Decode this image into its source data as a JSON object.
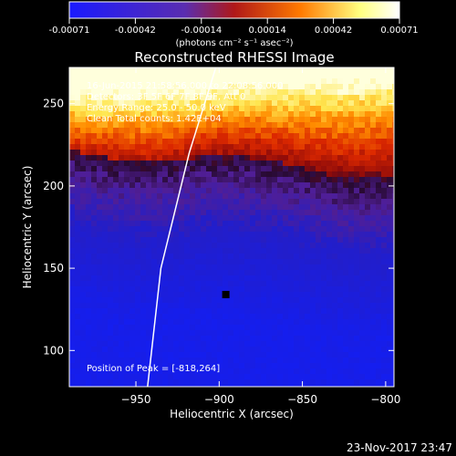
{
  "window": {
    "footer_date": "23-Nov-2017 23:47"
  },
  "colorbar": {
    "ticks": [
      "-0.00071",
      "-0.00042",
      "-0.00014",
      "0.00014",
      "0.00042",
      "0.00071"
    ],
    "units_label": "(photons cm⁻² s⁻¹ asec⁻²)",
    "colormap": [
      "#1a1aff",
      "#5a2db0",
      "#b01818",
      "#ff7a00",
      "#ffff80",
      "#ffffff"
    ]
  },
  "chart_data": {
    "type": "heatmap",
    "title": "Reconstructed RHESSI Image",
    "xlabel": "Heliocentric X (arcsec)",
    "ylabel": "Heliocentric Y (arcsec)",
    "xlim": [
      -990,
      -795
    ],
    "ylim": [
      78,
      272
    ],
    "x_ticks": [
      -950,
      -900,
      -850,
      -800
    ],
    "x_tick_labels": [
      "−950",
      "−900",
      "−850",
      "−800"
    ],
    "y_ticks": [
      100,
      150,
      200,
      250
    ],
    "y_tick_labels": [
      "100",
      "150",
      "200",
      "250"
    ],
    "info_lines": [
      "16-Jun-2015 21:58:56.000 to 22:08:56.000",
      "Detectors: 3F 5F 6F 7F 8F 9F, Att 0",
      "Energy Range: 25.0 - 50.0 keV",
      "Clean    Total counts: 1.42E+04"
    ],
    "peak_label": "Position of Peak = [-818,264]",
    "peak": [
      -818,
      264
    ],
    "limb_points": [
      [
        -943,
        78
      ],
      [
        -935,
        150
      ],
      [
        -918,
        220
      ],
      [
        -902,
        272
      ]
    ],
    "dark_marker": [
      -896,
      134
    ]
  }
}
